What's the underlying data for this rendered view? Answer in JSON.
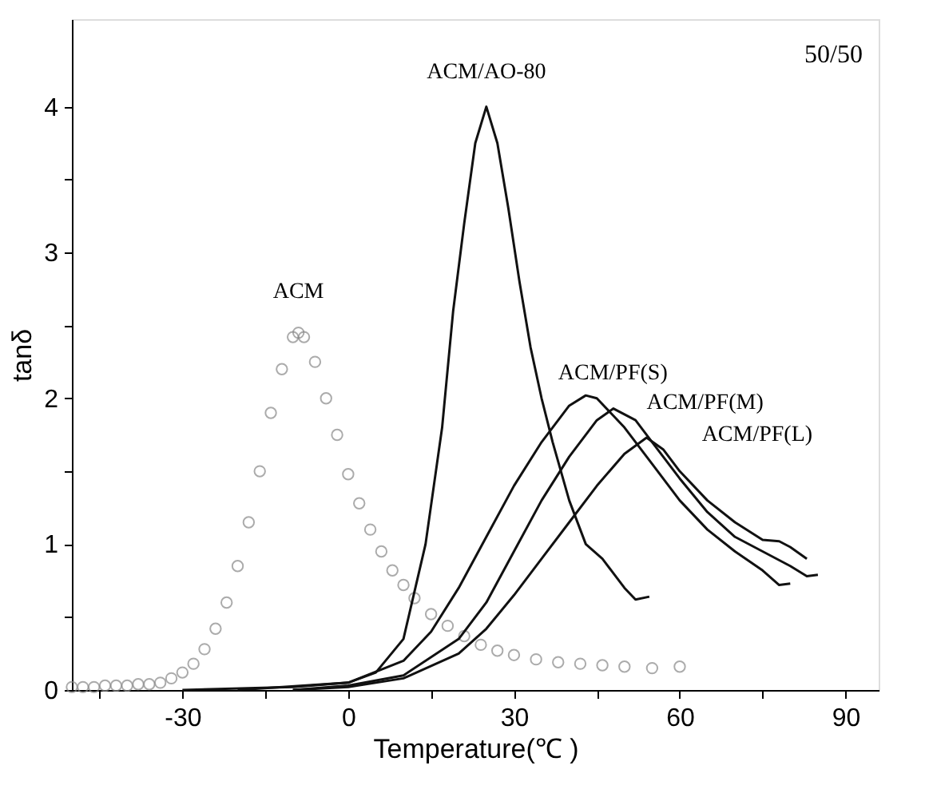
{
  "chart_data": {
    "type": "line",
    "xlabel": "Temperature(℃ )",
    "ylabel": "tanδ",
    "annotations": [
      "50/50"
    ],
    "xlim": [
      -50,
      96
    ],
    "ylim": [
      0,
      4.6
    ],
    "xticks": [
      {
        "value": -45,
        "label": null
      },
      -30,
      {
        "value": -15,
        "label": null
      },
      0,
      {
        "value": 15,
        "label": null
      },
      30,
      {
        "value": 45,
        "label": null
      },
      60,
      {
        "value": 75,
        "label": null
      },
      90
    ],
    "yticks": [
      0,
      {
        "value": 0.5,
        "label": null
      },
      1,
      {
        "value": 1.5,
        "label": null
      },
      2,
      {
        "value": 2.5,
        "label": null
      },
      3,
      {
        "value": 3.5,
        "label": null
      },
      4
    ],
    "grid": false,
    "legend": false,
    "series": [
      {
        "name": "ACM",
        "type": "scatter",
        "marker": "circle",
        "color": "#888888",
        "x": [
          -50,
          -48,
          -46,
          -44,
          -42,
          -40,
          -38,
          -36,
          -34,
          -32,
          -30,
          -28,
          -26,
          -24,
          -22,
          -20,
          -18,
          -16,
          -14,
          -12,
          -10,
          -9,
          -8,
          -6,
          -4,
          -2,
          0,
          2,
          4,
          6,
          8,
          10,
          12,
          15,
          18,
          21,
          24,
          27,
          30,
          34,
          38,
          42,
          46,
          50,
          55,
          60
        ],
        "values": [
          0.02,
          0.02,
          0.02,
          0.03,
          0.03,
          0.03,
          0.04,
          0.04,
          0.05,
          0.08,
          0.12,
          0.18,
          0.28,
          0.42,
          0.6,
          0.85,
          1.15,
          1.5,
          1.9,
          2.2,
          2.42,
          2.45,
          2.42,
          2.25,
          2.0,
          1.75,
          1.48,
          1.28,
          1.1,
          0.95,
          0.82,
          0.72,
          0.63,
          0.52,
          0.44,
          0.37,
          0.31,
          0.27,
          0.24,
          0.21,
          0.19,
          0.18,
          0.17,
          0.16,
          0.15,
          0.16
        ]
      },
      {
        "name": "ACM/AO-80",
        "marker": "none",
        "color": "#111111",
        "x": [
          -30,
          -10,
          0,
          5,
          10,
          14,
          17,
          19,
          21,
          23,
          25,
          27,
          29,
          31,
          33,
          35,
          37,
          40,
          43,
          46,
          48,
          50,
          52,
          54.5
        ],
        "values": [
          0.0,
          0.02,
          0.05,
          0.12,
          0.35,
          1.0,
          1.8,
          2.6,
          3.2,
          3.75,
          4.0,
          3.75,
          3.3,
          2.8,
          2.35,
          2.0,
          1.7,
          1.3,
          1.0,
          0.9,
          0.8,
          0.7,
          0.62,
          0.64
        ]
      },
      {
        "name": "ACM/PF(S)",
        "marker": "none",
        "color": "#111111",
        "x": [
          -20,
          0,
          10,
          15,
          20,
          25,
          30,
          35,
          40,
          43,
          45,
          50,
          55,
          60,
          65,
          70,
          75,
          78,
          80
        ],
        "values": [
          0.0,
          0.05,
          0.2,
          0.4,
          0.7,
          1.05,
          1.4,
          1.7,
          1.95,
          2.02,
          2.0,
          1.8,
          1.55,
          1.3,
          1.1,
          0.95,
          0.82,
          0.72,
          0.73
        ]
      },
      {
        "name": "ACM/PF(M)",
        "marker": "none",
        "color": "#111111",
        "x": [
          -10,
          0,
          10,
          20,
          25,
          30,
          35,
          40,
          45,
          48,
          52,
          55,
          60,
          65,
          70,
          75,
          80,
          83,
          85
        ],
        "values": [
          0.0,
          0.03,
          0.1,
          0.35,
          0.6,
          0.95,
          1.3,
          1.6,
          1.85,
          1.93,
          1.85,
          1.7,
          1.45,
          1.22,
          1.05,
          0.95,
          0.85,
          0.78,
          0.79
        ]
      },
      {
        "name": "ACM/PF(L)",
        "marker": "none",
        "color": "#111111",
        "x": [
          -10,
          0,
          10,
          20,
          25,
          30,
          35,
          40,
          45,
          50,
          54,
          57,
          60,
          65,
          70,
          75,
          78,
          80,
          83
        ],
        "values": [
          0.0,
          0.02,
          0.08,
          0.25,
          0.42,
          0.65,
          0.9,
          1.15,
          1.4,
          1.62,
          1.73,
          1.65,
          1.5,
          1.3,
          1.15,
          1.03,
          1.02,
          0.98,
          0.9
        ]
      }
    ]
  }
}
